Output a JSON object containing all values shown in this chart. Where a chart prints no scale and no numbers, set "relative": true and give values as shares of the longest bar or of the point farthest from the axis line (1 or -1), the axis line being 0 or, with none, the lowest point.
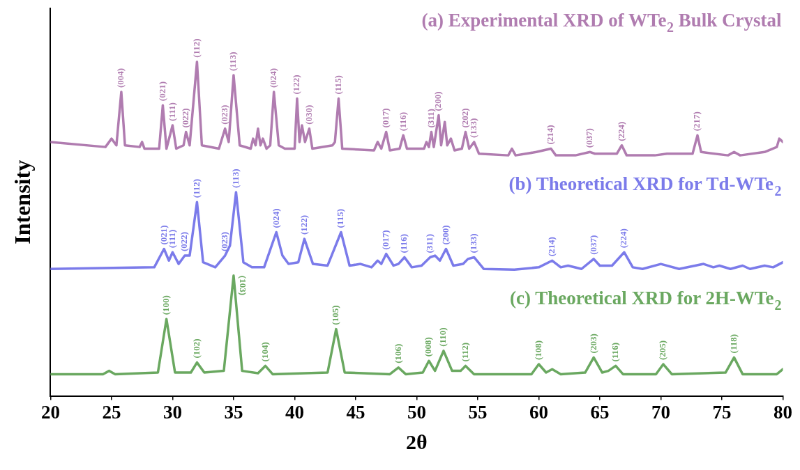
{
  "chart_data": {
    "type": "line",
    "relative": true,
    "xlabel": "2θ",
    "ylabel": "Intensity",
    "xlim": [
      20,
      80
    ],
    "xticks": [
      20,
      25,
      30,
      35,
      40,
      45,
      50,
      55,
      60,
      65,
      70,
      75,
      80
    ],
    "marker": "none",
    "line_style": "solid",
    "series": [
      {
        "name": "(a) Experimental XRD of WTe$_{2}$ Bulk Crystal",
        "color": "#b07cb0",
        "x": [
          20,
          24.5,
          25.0,
          25.4,
          25.8,
          26.1,
          27.3,
          27.5,
          27.7,
          28.9,
          29.2,
          29.5,
          30.0,
          30.3,
          30.9,
          31.1,
          31.4,
          32.0,
          32.4,
          33.8,
          34.3,
          34.6,
          35.0,
          35.5,
          36.4,
          36.6,
          36.8,
          37.0,
          37.2,
          37.4,
          37.7,
          38.0,
          38.3,
          38.7,
          39.2,
          40.0,
          40.2,
          40.4,
          40.6,
          40.85,
          41.2,
          41.45,
          43.1,
          43.3,
          43.6,
          43.9,
          46.5,
          46.8,
          47.1,
          47.5,
          47.8,
          48.6,
          48.9,
          49.2,
          50.6,
          50.8,
          51.0,
          51.2,
          51.4,
          51.8,
          52.0,
          52.3,
          52.5,
          52.8,
          53.1,
          53.7,
          54.0,
          54.3,
          54.7,
          55.1,
          57.5,
          57.8,
          58.1,
          59.8,
          61.0,
          61.4,
          63.0,
          64.2,
          64.6,
          66.4,
          66.8,
          67.2,
          69.5,
          70.5,
          72.6,
          73.0,
          73.3,
          75.5,
          76.0,
          76.5,
          78.5,
          79.5,
          79.7,
          80
        ],
        "values": [
          0.76,
          0.745,
          0.77,
          0.75,
          0.91,
          0.75,
          0.745,
          0.76,
          0.74,
          0.74,
          0.87,
          0.74,
          0.81,
          0.74,
          0.75,
          0.79,
          0.75,
          1.0,
          0.75,
          0.74,
          0.8,
          0.76,
          0.96,
          0.75,
          0.74,
          0.77,
          0.75,
          0.8,
          0.75,
          0.77,
          0.74,
          0.75,
          0.91,
          0.75,
          0.74,
          0.74,
          0.89,
          0.76,
          0.81,
          0.76,
          0.8,
          0.74,
          0.75,
          0.76,
          0.89,
          0.74,
          0.735,
          0.76,
          0.74,
          0.79,
          0.735,
          0.74,
          0.78,
          0.74,
          0.74,
          0.76,
          0.745,
          0.79,
          0.745,
          0.84,
          0.75,
          0.82,
          0.75,
          0.77,
          0.735,
          0.74,
          0.79,
          0.74,
          0.76,
          0.725,
          0.72,
          0.74,
          0.72,
          0.73,
          0.74,
          0.72,
          0.72,
          0.73,
          0.725,
          0.725,
          0.75,
          0.72,
          0.72,
          0.725,
          0.725,
          0.78,
          0.73,
          0.72,
          0.73,
          0.72,
          0.73,
          0.745,
          0.77,
          0.76
        ]
      },
      {
        "name": "(b) Theoretical XRD for Td-WTe$_{2}$",
        "color": "#7b7bea",
        "x": [
          20,
          28.5,
          29.3,
          29.7,
          30.0,
          30.5,
          31.0,
          31.4,
          32.0,
          32.5,
          33.5,
          34.3,
          34.7,
          35.2,
          35.8,
          36.5,
          37.5,
          38.5,
          39.0,
          39.5,
          40.3,
          40.8,
          41.5,
          42.7,
          43.8,
          44.5,
          45.4,
          46.3,
          46.8,
          47.1,
          47.5,
          48.1,
          48.5,
          49.0,
          49.6,
          50.4,
          51.1,
          51.5,
          51.9,
          52.4,
          53.0,
          53.8,
          54.2,
          54.7,
          55.5,
          58,
          60,
          61.1,
          61.8,
          62.4,
          63.5,
          64.5,
          65.0,
          66.0,
          67.0,
          67.7,
          68.5,
          70.0,
          71.5,
          73.5,
          74.3,
          74.8,
          75.7,
          76.7,
          77.3,
          78.5,
          79.2,
          80
        ],
        "values": [
          0.38,
          0.385,
          0.44,
          0.405,
          0.43,
          0.395,
          0.42,
          0.42,
          0.58,
          0.4,
          0.385,
          0.42,
          0.45,
          0.61,
          0.4,
          0.385,
          0.385,
          0.49,
          0.42,
          0.395,
          0.4,
          0.47,
          0.395,
          0.39,
          0.49,
          0.39,
          0.395,
          0.385,
          0.405,
          0.395,
          0.425,
          0.39,
          0.395,
          0.415,
          0.385,
          0.39,
          0.415,
          0.42,
          0.405,
          0.44,
          0.39,
          0.395,
          0.41,
          0.415,
          0.38,
          0.378,
          0.385,
          0.405,
          0.385,
          0.39,
          0.38,
          0.41,
          0.39,
          0.39,
          0.43,
          0.385,
          0.38,
          0.395,
          0.38,
          0.395,
          0.385,
          0.39,
          0.38,
          0.39,
          0.38,
          0.39,
          0.385,
          0.4
        ]
      },
      {
        "name": "(c) Theoretical XRD for 2H-WTe$_{2}$",
        "color": "#6aa860",
        "x": [
          20,
          24.3,
          24.8,
          25.3,
          28.8,
          29.5,
          30.2,
          31.5,
          32.0,
          32.6,
          34.2,
          35.0,
          35.7,
          37.0,
          37.6,
          38.2,
          42.7,
          43.4,
          44.1,
          47.8,
          48.5,
          49.1,
          50.5,
          51.0,
          51.5,
          52.2,
          52.9,
          53.6,
          54.0,
          54.7,
          59.4,
          60.0,
          60.6,
          61.1,
          61.8,
          63.8,
          64.5,
          65.2,
          65.7,
          66.3,
          66.9,
          69.6,
          70.2,
          70.9,
          75.3,
          76.0,
          76.7,
          79.5,
          80
        ],
        "values": [
          0.065,
          0.065,
          0.075,
          0.065,
          0.07,
          0.23,
          0.07,
          0.07,
          0.1,
          0.07,
          0.075,
          0.36,
          0.075,
          0.068,
          0.09,
          0.065,
          0.07,
          0.2,
          0.07,
          0.065,
          0.085,
          0.065,
          0.07,
          0.105,
          0.075,
          0.135,
          0.075,
          0.075,
          0.09,
          0.065,
          0.065,
          0.095,
          0.07,
          0.08,
          0.065,
          0.07,
          0.115,
          0.07,
          0.075,
          0.09,
          0.065,
          0.065,
          0.095,
          0.065,
          0.07,
          0.115,
          0.065,
          0.065,
          0.08
        ]
      }
    ],
    "annotations": [
      {
        "text": "(004)",
        "x": 25.8,
        "y": 0.91
      },
      {
        "text": "(021)",
        "x": 29.2,
        "y": 0.87
      },
      {
        "text": "(111)",
        "x": 30.0,
        "y": 0.81
      },
      {
        "text": "(022)",
        "x": 31.1,
        "y": 0.79
      },
      {
        "text": "(112)",
        "x": 32.0,
        "y": 1.0
      },
      {
        "text": "(023)",
        "x": 34.3,
        "y": 0.8
      },
      {
        "text": "(113)",
        "x": 35.0,
        "y": 0.96
      },
      {
        "text": "(024)",
        "x": 38.3,
        "y": 0.91
      },
      {
        "text": "(122)",
        "x": 40.2,
        "y": 0.89
      },
      {
        "text": "(030)",
        "x": 41.2,
        "y": 0.8
      },
      {
        "text": "(115)",
        "x": 43.6,
        "y": 0.89
      },
      {
        "text": "(017)",
        "x": 47.5,
        "y": 0.79
      },
      {
        "text": "(116)",
        "x": 48.9,
        "y": 0.78
      },
      {
        "text": "(311)",
        "x": 51.2,
        "y": 0.79
      },
      {
        "text": "(200)",
        "x": 51.8,
        "y": 0.84
      },
      {
        "text": "(202)",
        "x": 54.0,
        "y": 0.79
      },
      {
        "text": "(133)",
        "x": 54.7,
        "y": 0.76
      },
      {
        "text": "(214)",
        "x": 61.0,
        "y": 0.74
      },
      {
        "text": "(037)",
        "x": 64.2,
        "y": 0.73
      },
      {
        "text": "(224)",
        "x": 66.8,
        "y": 0.75
      },
      {
        "text": "(217)",
        "x": 73.0,
        "y": 0.78
      },
      {
        "text": "(021)",
        "x": 29.3,
        "y": 0.44
      },
      {
        "text": "(111)",
        "x": 30.0,
        "y": 0.43
      },
      {
        "text": "(022)",
        "x": 31.0,
        "y": 0.42
      },
      {
        "text": "(112)",
        "x": 32.0,
        "y": 0.58
      },
      {
        "text": "(023)",
        "x": 34.3,
        "y": 0.42
      },
      {
        "text": "(113)",
        "x": 35.2,
        "y": 0.61
      },
      {
        "text": "(024)",
        "x": 38.5,
        "y": 0.49
      },
      {
        "text": "(122)",
        "x": 40.8,
        "y": 0.47
      },
      {
        "text": "(115)",
        "x": 43.8,
        "y": 0.49
      },
      {
        "text": "(017)",
        "x": 47.5,
        "y": 0.425
      },
      {
        "text": "(116)",
        "x": 49.0,
        "y": 0.415
      },
      {
        "text": "(311)",
        "x": 51.1,
        "y": 0.415
      },
      {
        "text": "(200)",
        "x": 52.4,
        "y": 0.44
      },
      {
        "text": "(133)",
        "x": 54.7,
        "y": 0.415
      },
      {
        "text": "(214)",
        "x": 61.1,
        "y": 0.405
      },
      {
        "text": "(037)",
        "x": 64.5,
        "y": 0.41
      },
      {
        "text": "(224)",
        "x": 67.0,
        "y": 0.43
      },
      {
        "text": "(100)",
        "x": 29.5,
        "y": 0.23
      },
      {
        "text": "(102)",
        "x": 32.0,
        "y": 0.1
      },
      {
        "text": "(103)",
        "x": 35.0,
        "y": 0.36
      },
      {
        "text": "(104)",
        "x": 37.6,
        "y": 0.09
      },
      {
        "text": "(105)",
        "x": 43.4,
        "y": 0.2
      },
      {
        "text": "(106)",
        "x": 48.5,
        "y": 0.085
      },
      {
        "text": "(008)",
        "x": 51.0,
        "y": 0.105
      },
      {
        "text": "(110)",
        "x": 52.2,
        "y": 0.135
      },
      {
        "text": "(112)",
        "x": 54.0,
        "y": 0.09
      },
      {
        "text": "(108)",
        "x": 60.0,
        "y": 0.095
      },
      {
        "text": "(203)",
        "x": 64.5,
        "y": 0.115
      },
      {
        "text": "(116)",
        "x": 66.3,
        "y": 0.09
      },
      {
        "text": "(205)",
        "x": 70.2,
        "y": 0.095
      },
      {
        "text": "(118)",
        "x": 76.0,
        "y": 0.115
      }
    ]
  }
}
